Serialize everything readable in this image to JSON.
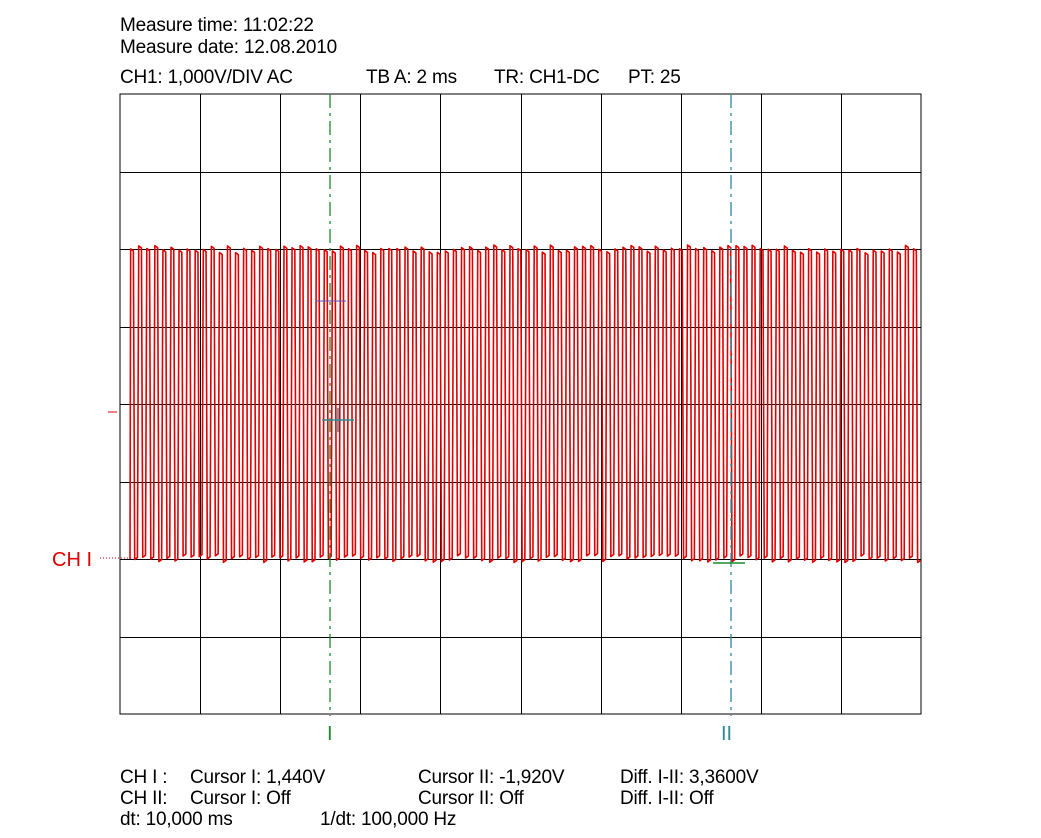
{
  "header": {
    "measure_time": "Measure time: 11:02:22",
    "measure_date": "Measure date: 12.08.2010",
    "settings_ch": "CH1: 1,000V/DIV AC",
    "settings_tb": "TB A: 2 ms",
    "settings_tr": "TR: CH1-DC",
    "settings_pt": "PT: 25"
  },
  "scope": {
    "channel_label": "CH I",
    "trace_color": "#e00000",
    "grid_color": "#000000",
    "cursor1_color": "#1a8a2a",
    "cursor2_color": "#2a8a9a",
    "grid_divisions_x": 10,
    "grid_divisions_y": 8,
    "volts_per_div": 1.0,
    "ground_level_div": -2,
    "signal": {
      "type": "square-ish oscillation",
      "high_level_div": 2,
      "low_level_div": -2,
      "cycles_visible": 98
    }
  },
  "cursors": {
    "cursor1_label": "I",
    "cursor2_label": "II"
  },
  "readout": {
    "row1": {
      "channel": "CH I :",
      "cursor1": "Cursor I: 1,440V",
      "cursor2": "Cursor II: -1,920V",
      "diff": "Diff. I-II: 3,3600V"
    },
    "row2": {
      "channel": "CH II:",
      "cursor1": "Cursor I: Off",
      "cursor2": "Cursor II: Off",
      "diff": "Diff. I-II: Off"
    },
    "row3": {
      "dt": "dt: 10,000 ms",
      "inv_dt": "1/dt: 100,000 Hz"
    }
  }
}
